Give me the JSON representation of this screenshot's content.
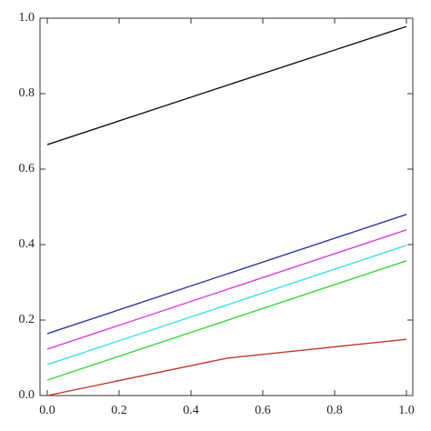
{
  "chart_data": {
    "type": "line",
    "x": [
      0,
      0.5,
      1
    ],
    "series": [
      {
        "color": "#111111",
        "values": [
          0.665,
          0.822,
          0.978
        ]
      },
      {
        "color": "#2b3a9c",
        "values": [
          0.164,
          0.322,
          0.48
        ]
      },
      {
        "color": "#d63fd6",
        "values": [
          0.123,
          0.281,
          0.439
        ]
      },
      {
        "color": "#3de0e8",
        "values": [
          0.082,
          0.24,
          0.398
        ]
      },
      {
        "color": "#3cd63c",
        "values": [
          0.041,
          0.199,
          0.357
        ]
      },
      {
        "color": "#c0392b",
        "values": [
          0,
          0.099,
          0.149
        ]
      }
    ],
    "xlim": [
      0,
      1
    ],
    "ylim": [
      0,
      1
    ],
    "xticks": [
      {
        "value": 0,
        "label": "0.0"
      },
      {
        "value": 0.2,
        "label": "0.2"
      },
      {
        "value": 0.4,
        "label": "0.4"
      },
      {
        "value": 0.6,
        "label": "0.6"
      },
      {
        "value": 0.8,
        "label": "0.8"
      },
      {
        "value": 1,
        "label": "1.0"
      }
    ],
    "yticks": [
      {
        "value": 0,
        "label": "0.0"
      },
      {
        "value": 0.2,
        "label": "0.2"
      },
      {
        "value": 0.4,
        "label": "0.4"
      },
      {
        "value": 0.6,
        "label": "0.6"
      },
      {
        "value": 0.8,
        "label": "0.8"
      },
      {
        "value": 1,
        "label": "1.0"
      }
    ]
  }
}
